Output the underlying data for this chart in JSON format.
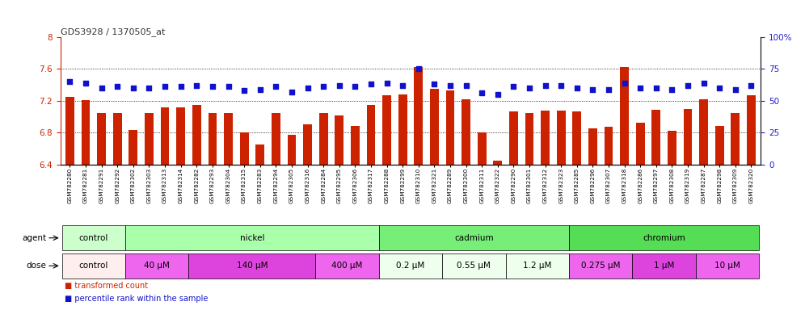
{
  "title": "GDS3928 / 1370505_at",
  "samples": [
    "GSM782280",
    "GSM782281",
    "GSM782291",
    "GSM782292",
    "GSM782302",
    "GSM782303",
    "GSM782313",
    "GSM782314",
    "GSM782282",
    "GSM782293",
    "GSM782304",
    "GSM782315",
    "GSM782283",
    "GSM782294",
    "GSM782305",
    "GSM782316",
    "GSM782284",
    "GSM782295",
    "GSM782306",
    "GSM782317",
    "GSM782288",
    "GSM782299",
    "GSM782310",
    "GSM782321",
    "GSM782289",
    "GSM782300",
    "GSM782311",
    "GSM782322",
    "GSM782290",
    "GSM782301",
    "GSM782312",
    "GSM782323",
    "GSM782285",
    "GSM782296",
    "GSM782307",
    "GSM782318",
    "GSM782286",
    "GSM782297",
    "GSM782308",
    "GSM782319",
    "GSM782287",
    "GSM782298",
    "GSM782309",
    "GSM782320"
  ],
  "bar_values": [
    7.25,
    7.21,
    7.05,
    7.05,
    6.83,
    7.05,
    7.12,
    7.12,
    7.15,
    7.05,
    7.05,
    6.8,
    6.65,
    7.05,
    6.77,
    6.9,
    7.05,
    7.02,
    6.88,
    7.15,
    7.27,
    7.28,
    7.62,
    7.35,
    7.33,
    7.22,
    6.8,
    6.45,
    7.07,
    7.05,
    7.08,
    7.08,
    7.07,
    6.85,
    6.87,
    7.62,
    6.92,
    7.09,
    6.82,
    7.1,
    7.22,
    6.88,
    7.05,
    7.27
  ],
  "percentile_values": [
    65,
    64,
    60,
    61,
    60,
    60,
    61,
    61,
    62,
    61,
    61,
    58,
    59,
    61,
    57,
    60,
    61,
    62,
    61,
    63,
    64,
    62,
    75,
    63,
    62,
    62,
    56,
    55,
    61,
    60,
    62,
    62,
    60,
    59,
    59,
    64,
    60,
    60,
    59,
    62,
    64,
    60,
    59,
    62
  ],
  "y_min": 6.4,
  "y_max": 8.0,
  "yticks_left": [
    6.4,
    6.8,
    7.2,
    7.6,
    8.0
  ],
  "ytick_labels_left": [
    "6.4",
    "6.8",
    "7.2",
    "7.6",
    "8"
  ],
  "yticks_right": [
    0,
    25,
    50,
    75,
    100
  ],
  "ytick_labels_right": [
    "0",
    "25",
    "50",
    "75",
    "100%"
  ],
  "bar_color": "#cc2200",
  "dot_color": "#1111cc",
  "plot_bg": "#ffffff",
  "left_axis_color": "#cc2200",
  "right_axis_color": "#2222cc",
  "agent_groups": [
    {
      "label": "control",
      "start": 0,
      "end": 3,
      "color": "#ccffcc"
    },
    {
      "label": "nickel",
      "start": 4,
      "end": 19,
      "color": "#aaffaa"
    },
    {
      "label": "cadmium",
      "start": 20,
      "end": 31,
      "color": "#77ee77"
    },
    {
      "label": "chromium",
      "start": 32,
      "end": 43,
      "color": "#55dd55"
    }
  ],
  "dose_groups": [
    {
      "label": "control",
      "start": 0,
      "end": 3,
      "color": "#ffeeee"
    },
    {
      "label": "40 μM",
      "start": 4,
      "end": 7,
      "color": "#ee66ee"
    },
    {
      "label": "140 μM",
      "start": 8,
      "end": 15,
      "color": "#dd44dd"
    },
    {
      "label": "400 μM",
      "start": 16,
      "end": 19,
      "color": "#ee66ee"
    },
    {
      "label": "0.2 μM",
      "start": 20,
      "end": 23,
      "color": "#eeffee"
    },
    {
      "label": "0.55 μM",
      "start": 24,
      "end": 27,
      "color": "#eeffee"
    },
    {
      "label": "1.2 μM",
      "start": 28,
      "end": 31,
      "color": "#eeffee"
    },
    {
      "label": "0.275 μM",
      "start": 32,
      "end": 35,
      "color": "#ee66ee"
    },
    {
      "label": "1 μM",
      "start": 36,
      "end": 39,
      "color": "#dd44dd"
    },
    {
      "label": "10 μM",
      "start": 40,
      "end": 43,
      "color": "#ee66ee"
    }
  ]
}
